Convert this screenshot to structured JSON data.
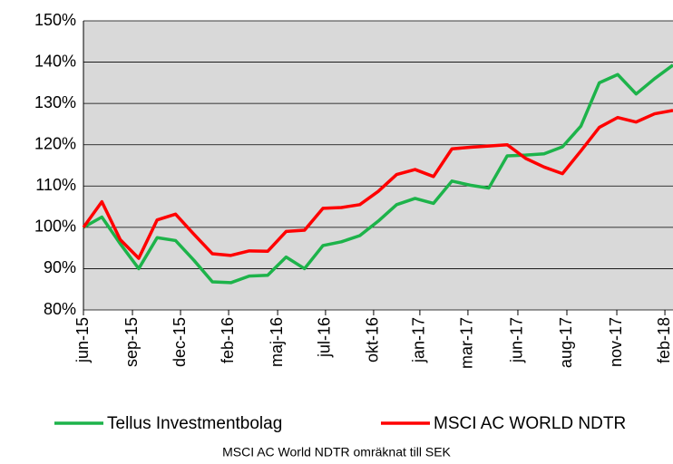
{
  "chart_data": {
    "type": "line",
    "xticks": [
      {
        "value": 0,
        "label": "jun-15"
      },
      {
        "value": 2.66,
        "label": "sep-15"
      },
      {
        "value": 5.27,
        "label": "dec-15"
      },
      {
        "value": 7.88,
        "label": "feb-16"
      },
      {
        "value": 10.54,
        "label": "maj-16"
      },
      {
        "value": 13.14,
        "label": "jul-16"
      },
      {
        "value": 15.75,
        "label": "okt-16"
      },
      {
        "value": 18.26,
        "label": "jan-17"
      },
      {
        "value": 20.87,
        "label": "mar-17"
      },
      {
        "value": 23.58,
        "label": "jun-17"
      },
      {
        "value": 26.24,
        "label": "aug-17"
      },
      {
        "value": 28.95,
        "label": "nov-17"
      },
      {
        "value": 31.56,
        "label": "feb-18"
      }
    ],
    "xlim": [
      0,
      32
    ],
    "ylim": [
      80,
      150
    ],
    "yticks": [
      {
        "value": 80,
        "label": "80%"
      },
      {
        "value": 90,
        "label": "90%"
      },
      {
        "value": 100,
        "label": "100%"
      },
      {
        "value": 110,
        "label": "110%"
      },
      {
        "value": 120,
        "label": "120%"
      },
      {
        "value": 130,
        "label": "130%"
      },
      {
        "value": 140,
        "label": "140%"
      },
      {
        "value": 150,
        "label": "150%"
      }
    ],
    "grid": true,
    "series": [
      {
        "name": "Tellus Investmentbolag",
        "color": "#1db34a",
        "values": [
          100,
          102.5,
          96,
          90,
          97.5,
          96.8,
          92,
          86.8,
          86.6,
          88.2,
          88.4,
          92.8,
          90,
          95.6,
          96.5,
          98,
          101.5,
          105.5,
          107,
          105.8,
          111.2,
          110.2,
          109.5,
          117.3,
          117.5,
          117.8,
          119.5,
          124.5,
          135,
          137,
          132.3,
          136,
          139.3
        ]
      },
      {
        "name": "MSCI AC WORLD NDTR",
        "color": "#ff0000",
        "values": [
          100,
          106.2,
          97,
          92.5,
          101.8,
          103.2,
          98.3,
          93.6,
          93.2,
          94.3,
          94.2,
          99,
          99.3,
          104.6,
          104.8,
          105.5,
          108.7,
          112.8,
          114,
          112.3,
          119,
          119.4,
          119.7,
          120,
          116.7,
          114.6,
          113,
          118.5,
          124.2,
          126.6,
          125.5,
          127.5,
          128.3
        ]
      }
    ],
    "note": "MSCI AC World NDTR omräknat till SEK"
  }
}
